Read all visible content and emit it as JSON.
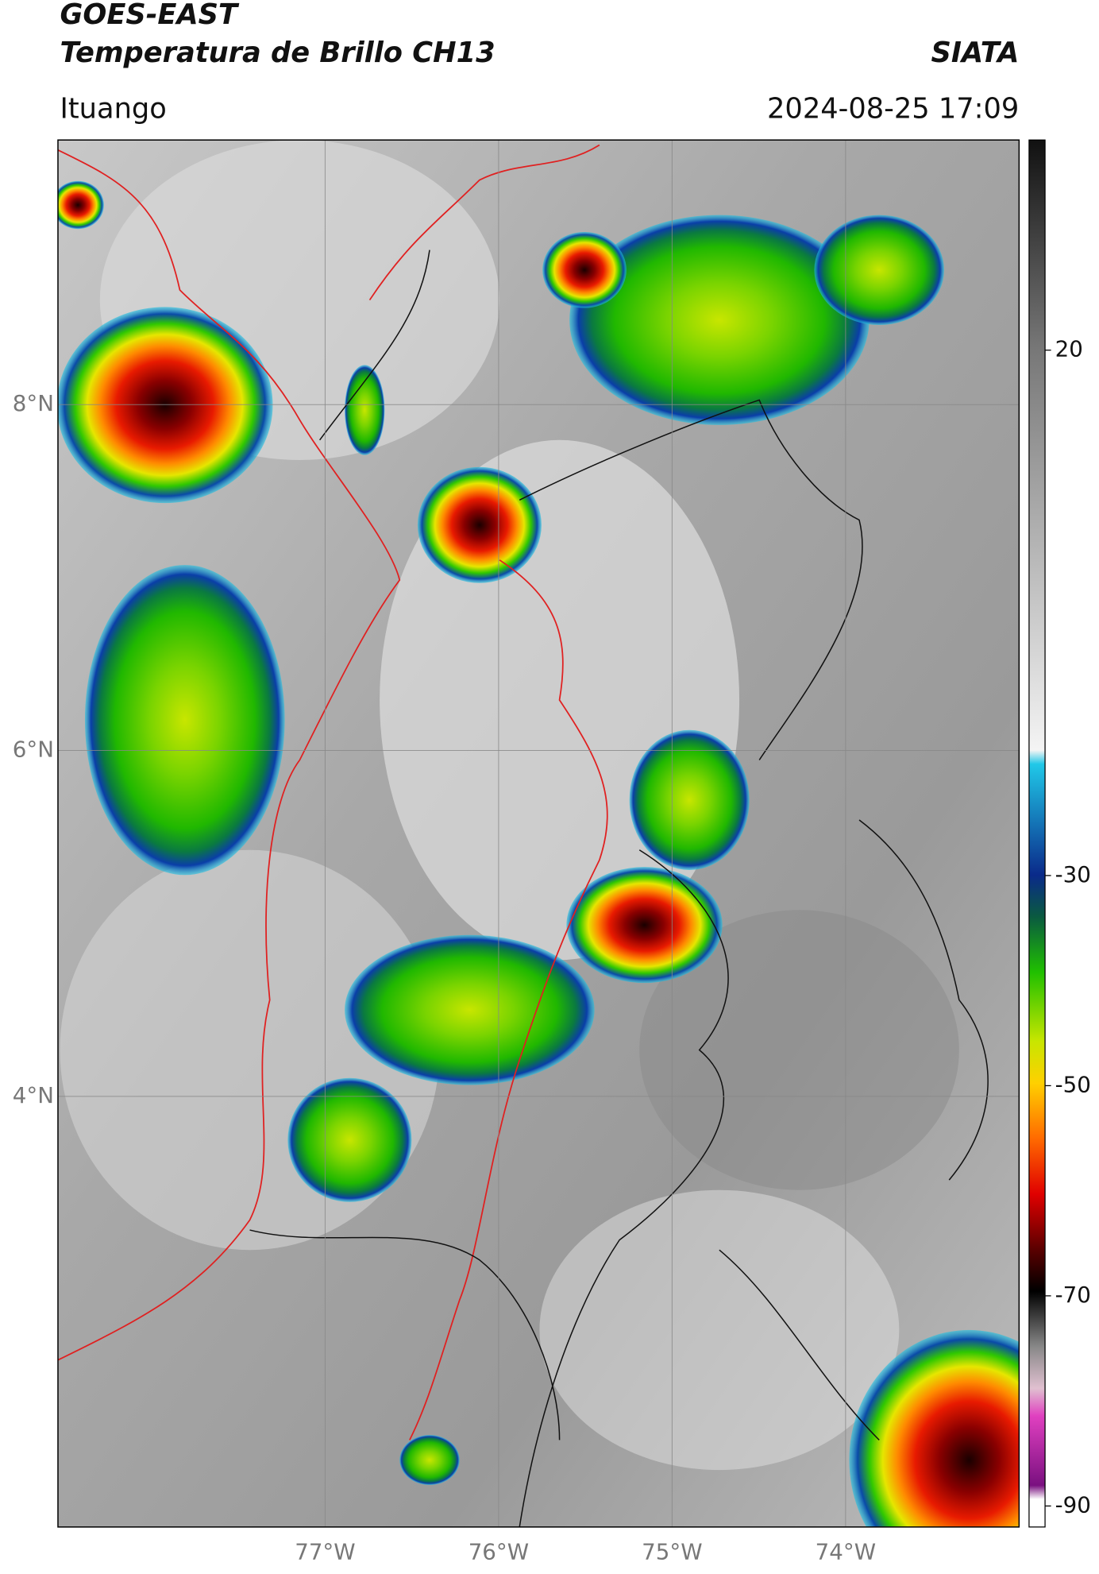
{
  "header": {
    "title": "GOES-EAST",
    "subtitle": "Temperatura de Brillo CH13",
    "org": "SIATA",
    "location": "Ituango",
    "datetime": "2024-08-25 17:09"
  },
  "map": {
    "xlim": [
      -78.54,
      -73.0
    ],
    "ylim": [
      1.51,
      9.53
    ],
    "xticks": [
      {
        "value": -77,
        "label": "77°W"
      },
      {
        "value": -76,
        "label": "76°W"
      },
      {
        "value": -75,
        "label": "75°W"
      },
      {
        "value": -74,
        "label": "74°W"
      }
    ],
    "yticks": [
      {
        "value": 8,
        "label": "8°N"
      },
      {
        "value": 6,
        "label": "6°N"
      },
      {
        "value": 4,
        "label": "4°N"
      }
    ],
    "grid": true
  },
  "colorbar": {
    "lim": [
      -92,
      40
    ],
    "ticks": [
      20,
      -30,
      -50,
      -70,
      -90
    ]
  }
}
